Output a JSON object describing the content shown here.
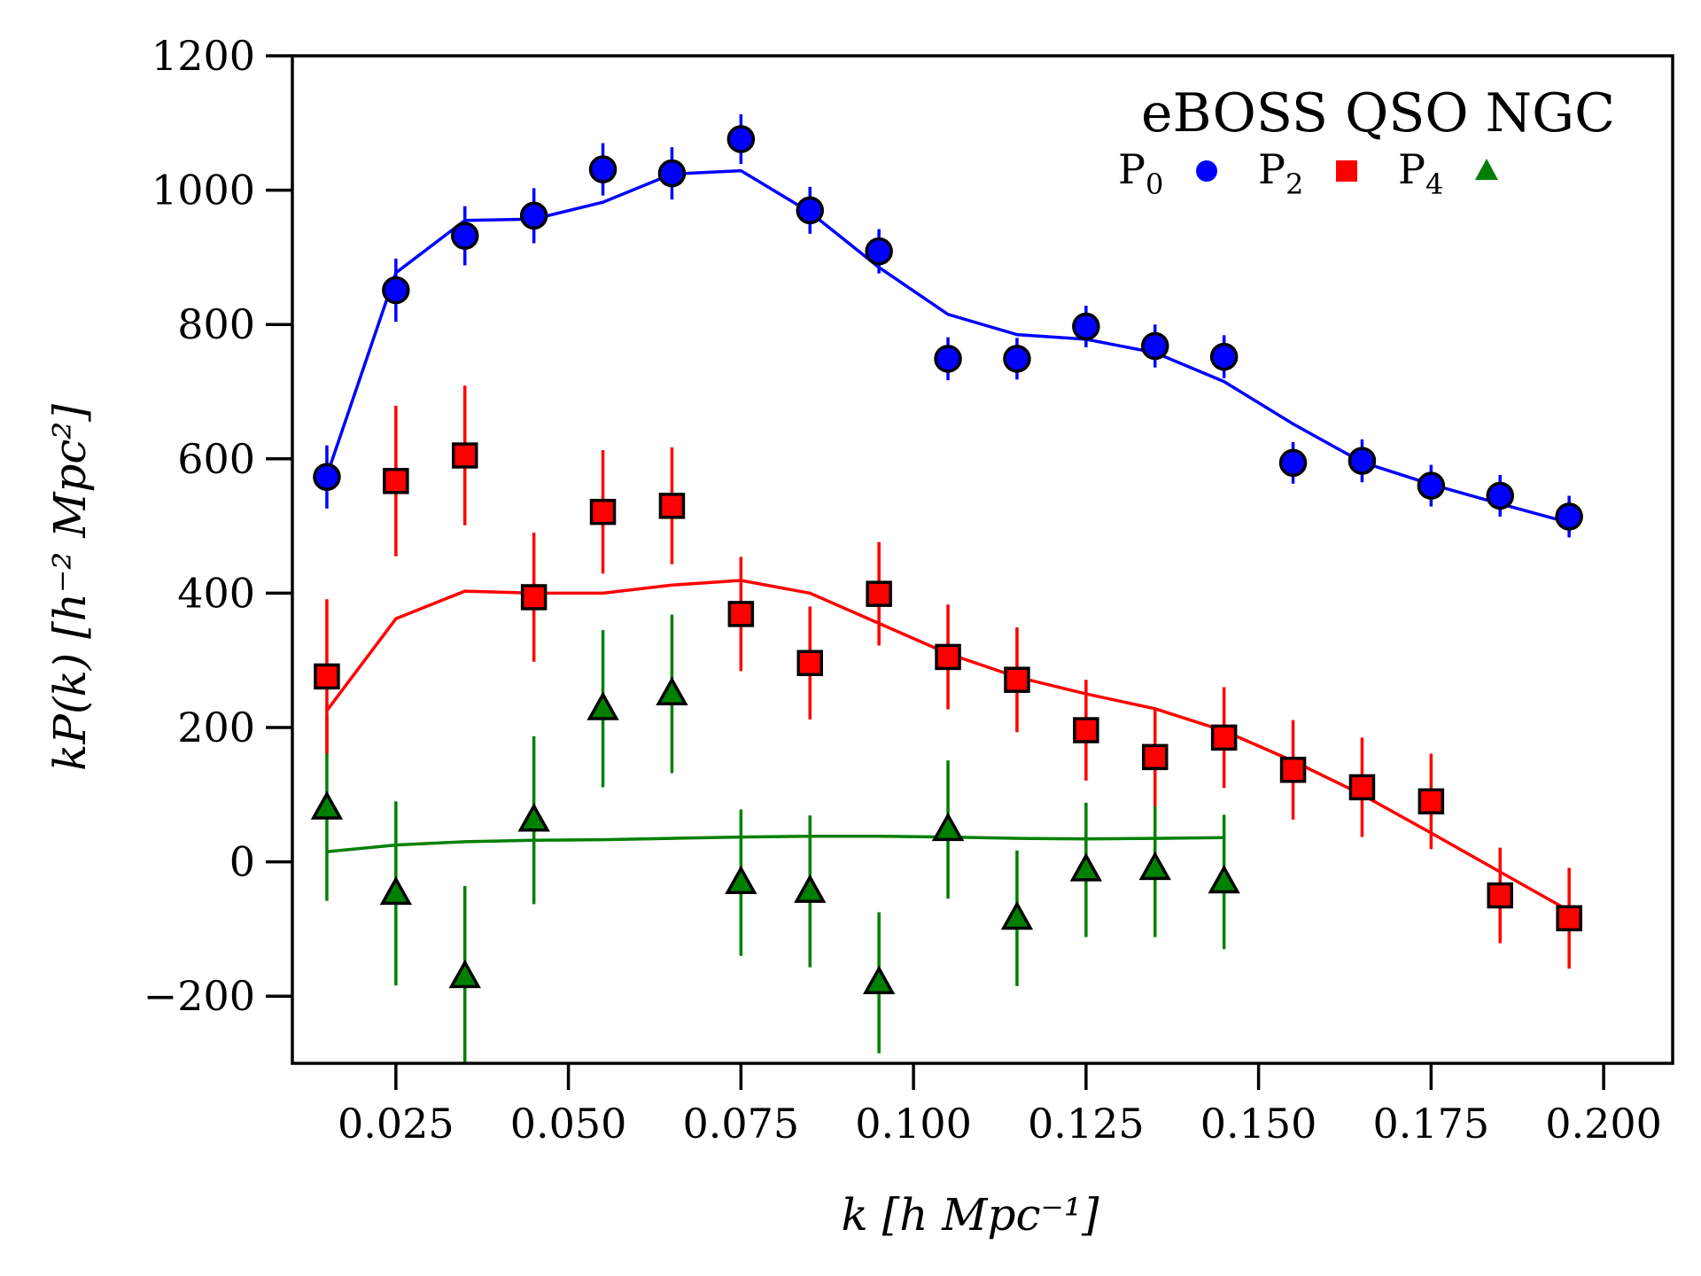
{
  "chart_data": {
    "type": "scatter",
    "title": "",
    "xlabel": "k [h Mpc⁻¹]",
    "ylabel": "kP(k) [h⁻² Mpc²]",
    "xlim": [
      0.01,
      0.21
    ],
    "ylim": [
      -300,
      1200
    ],
    "xticks": [
      0.025,
      0.05,
      0.075,
      0.1,
      0.125,
      0.15,
      0.175,
      0.2
    ],
    "xtick_labels": [
      "0.025",
      "0.050",
      "0.075",
      "0.100",
      "0.125",
      "0.150",
      "0.175",
      "0.200"
    ],
    "yticks": [
      -200,
      0,
      200,
      400,
      600,
      800,
      1000,
      1200
    ],
    "ytick_labels": [
      "−200",
      "0",
      "200",
      "400",
      "600",
      "800",
      "1000",
      "1200"
    ],
    "grid": false,
    "legend": {
      "title": "eBOSS QSO NGC",
      "placement": "top-right",
      "entries": [
        {
          "label": "P",
          "sub": "0",
          "marker": "circle",
          "color": "#0000ff"
        },
        {
          "label": "P",
          "sub": "2",
          "marker": "square",
          "color": "#ff0000"
        },
        {
          "label": "P",
          "sub": "4",
          "marker": "triangle",
          "color": "#008000"
        }
      ]
    },
    "series": [
      {
        "name": "P0",
        "color": "#0000ff",
        "marker": "circle",
        "x": [
          0.015,
          0.025,
          0.035,
          0.045,
          0.055,
          0.065,
          0.075,
          0.085,
          0.095,
          0.105,
          0.115,
          0.125,
          0.135,
          0.145,
          0.155,
          0.165,
          0.175,
          0.185,
          0.195
        ],
        "y": [
          573,
          851,
          932,
          962,
          1031,
          1025,
          1076,
          970,
          909,
          749,
          749,
          797,
          768,
          752,
          594,
          597,
          560,
          545,
          514
        ],
        "yerr": [
          47,
          47,
          44,
          41,
          39,
          39,
          37,
          35,
          33,
          32,
          31,
          31,
          32,
          32,
          31,
          32,
          31,
          31,
          31
        ],
        "model_x": [
          0.015,
          0.025,
          0.035,
          0.045,
          0.055,
          0.065,
          0.075,
          0.085,
          0.095,
          0.105,
          0.115,
          0.125,
          0.135,
          0.145,
          0.155,
          0.165,
          0.175,
          0.185,
          0.195
        ],
        "model_y": [
          575,
          877,
          955,
          957,
          982,
          1024,
          1029,
          967,
          885,
          815,
          785,
          778,
          758,
          715,
          652,
          595,
          562,
          533,
          505
        ]
      },
      {
        "name": "P2",
        "color": "#ff0000",
        "marker": "square",
        "x": [
          0.015,
          0.025,
          0.035,
          0.045,
          0.055,
          0.065,
          0.075,
          0.085,
          0.095,
          0.105,
          0.115,
          0.125,
          0.135,
          0.145,
          0.155,
          0.165,
          0.175,
          0.185,
          0.195
        ],
        "y": [
          276,
          567,
          605,
          394,
          521,
          530,
          369,
          296,
          399,
          305,
          271,
          196,
          156,
          185,
          137,
          111,
          90,
          -50,
          -84
        ],
        "yerr": [
          115,
          112,
          104,
          96,
          92,
          87,
          85,
          84,
          77,
          78,
          78,
          75,
          73,
          75,
          74,
          74,
          71,
          71,
          75
        ],
        "model_x": [
          0.015,
          0.025,
          0.035,
          0.045,
          0.055,
          0.065,
          0.075,
          0.085,
          0.095,
          0.105,
          0.115,
          0.125,
          0.135,
          0.145,
          0.155,
          0.165,
          0.175,
          0.185,
          0.195
        ],
        "model_y": [
          225,
          362,
          403,
          400,
          400,
          412,
          419,
          400,
          355,
          310,
          275,
          250,
          228,
          195,
          150,
          100,
          43,
          -15,
          -73
        ]
      },
      {
        "name": "P4",
        "color": "#008000",
        "marker": "triangle",
        "x": [
          0.015,
          0.025,
          0.035,
          0.045,
          0.055,
          0.065,
          0.075,
          0.085,
          0.095,
          0.105,
          0.115,
          0.125,
          0.135,
          0.145
        ],
        "y": [
          80,
          -47,
          -171,
          62,
          228,
          250,
          -31,
          -44,
          -180,
          48,
          -84,
          -12,
          -10,
          -30
        ],
        "yerr": [
          138,
          137,
          135,
          125,
          117,
          118,
          109,
          113,
          105,
          103,
          101,
          100,
          102,
          100
        ],
        "model_x": [
          0.015,
          0.025,
          0.035,
          0.045,
          0.055,
          0.065,
          0.075,
          0.085,
          0.095,
          0.105,
          0.115,
          0.125,
          0.135,
          0.145
        ],
        "model_y": [
          15,
          25,
          30,
          32,
          33,
          35,
          37,
          38,
          38,
          37,
          35,
          34,
          35,
          36
        ]
      }
    ]
  }
}
